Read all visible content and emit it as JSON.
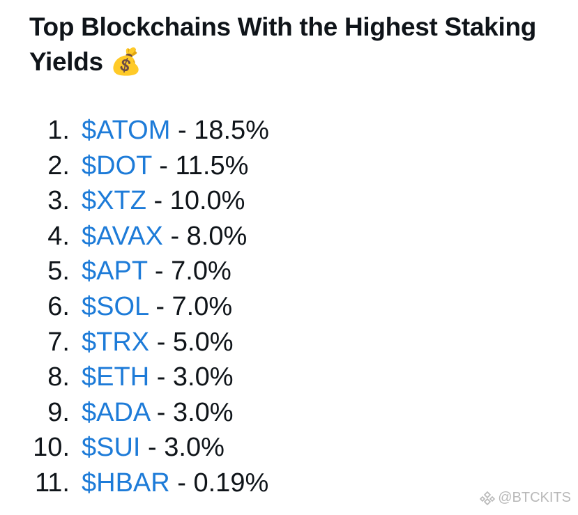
{
  "post": {
    "title": "Top Blockchains With the Highest Staking Yields 💰",
    "items": [
      {
        "number": "1.",
        "ticker": "$ATOM",
        "yield": "- 18.5%"
      },
      {
        "number": "2.",
        "ticker": "$DOT",
        "yield": "- 11.5%"
      },
      {
        "number": "3.",
        "ticker": "$XTZ",
        "yield": "- 10.0%"
      },
      {
        "number": "4.",
        "ticker": "$AVAX",
        "yield": "- 8.0%"
      },
      {
        "number": "5.",
        "ticker": "$APT",
        "yield": "- 7.0%"
      },
      {
        "number": "6.",
        "ticker": "$SOL",
        "yield": "- 7.0%"
      },
      {
        "number": "7.",
        "ticker": "$TRX",
        "yield": "- 5.0%"
      },
      {
        "number": "8.",
        "ticker": "$ETH",
        "yield": "- 3.0%"
      },
      {
        "number": "9.",
        "ticker": "$ADA",
        "yield": "- 3.0%"
      },
      {
        "number": "10.",
        "ticker": "$SUI",
        "yield": "- 3.0%"
      },
      {
        "number": "11.",
        "ticker": "$HBAR",
        "yield": "- 0.19%"
      }
    ],
    "watermark": "@BTCKITS"
  }
}
